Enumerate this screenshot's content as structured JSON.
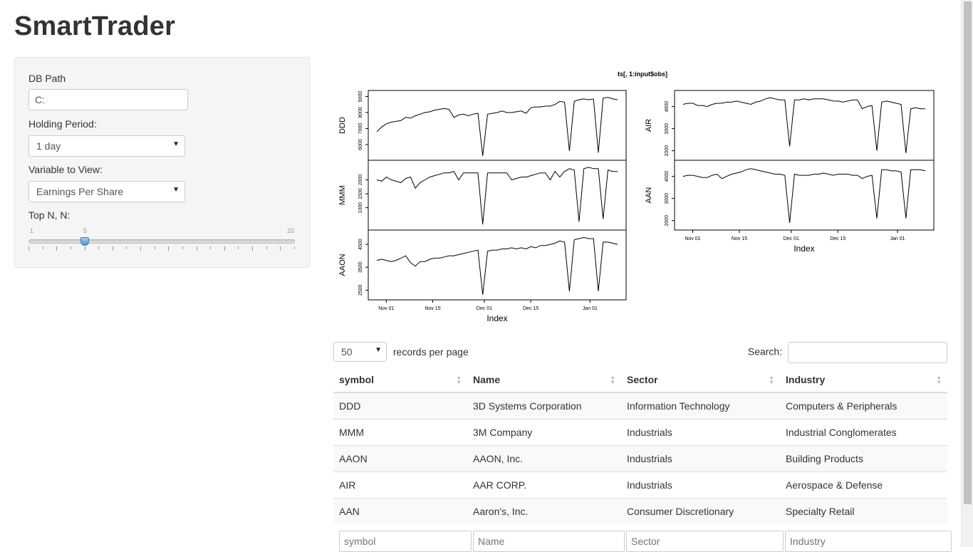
{
  "app": {
    "title": "SmartTrader"
  },
  "sidebar": {
    "db_path": {
      "label": "DB Path",
      "value": "C:"
    },
    "holding_period": {
      "label": "Holding Period:",
      "selected": "1 day"
    },
    "variable": {
      "label": "Variable to View:",
      "selected": "Earnings Per Share"
    },
    "top_n": {
      "label": "Top N, N:",
      "min": "1",
      "max": "20",
      "value": "5",
      "value_num": 5
    }
  },
  "chart_data": {
    "type": "line",
    "title": "ts[, 1:input$obs]",
    "xlabel": "Index",
    "x_ticks": [
      "Nov 01",
      "Nov 15",
      "Dec 01",
      "Dec 15",
      "Jan 01"
    ],
    "panels": [
      {
        "name": "DDD",
        "yticks": [
          "6000",
          "7000",
          "8000",
          "9000"
        ],
        "ylim": [
          5200,
          9200
        ],
        "values": [
          6800,
          7100,
          7300,
          7400,
          7450,
          7500,
          7700,
          7650,
          7800,
          7900,
          8000,
          8050,
          8150,
          8200,
          8250,
          8200,
          7700,
          7850,
          7900,
          7800,
          7900,
          7950,
          5300,
          7900,
          7950,
          8000,
          8100,
          8000,
          8000,
          8050,
          8100,
          7950,
          8300,
          8350,
          8350,
          8400,
          8400,
          8500,
          8700,
          8650,
          5600,
          8700,
          8800,
          8850,
          8800,
          8850,
          5500,
          8900,
          8950,
          8850,
          8800
        ]
      },
      {
        "name": "MMM",
        "yticks": [
          "1000",
          "1500",
          "2000"
        ],
        "ylim": [
          300,
          2600
        ],
        "values": [
          2000,
          1950,
          2100,
          2000,
          1950,
          1900,
          2050,
          2100,
          1700,
          1900,
          2000,
          2100,
          2150,
          2200,
          2250,
          2250,
          2300,
          2000,
          2250,
          2250,
          2250,
          2250,
          400,
          2250,
          2250,
          2250,
          2250,
          2250,
          2000,
          2050,
          2100,
          2100,
          2150,
          2200,
          2250,
          2250,
          2000,
          2300,
          2100,
          2300,
          2400,
          2350,
          500,
          2400,
          2450,
          2400,
          2400,
          600,
          2350,
          2300,
          2300
        ]
      },
      {
        "name": "AAON",
        "yticks": [
          "2500",
          "3500",
          "4500"
        ],
        "ylim": [
          2200,
          5000
        ],
        "values": [
          3800,
          3850,
          3800,
          3750,
          3800,
          3900,
          4000,
          3700,
          3550,
          3750,
          3750,
          3850,
          3900,
          3900,
          3950,
          4000,
          4000,
          4050,
          4100,
          4150,
          4200,
          4250,
          2300,
          4200,
          4250,
          4250,
          4300,
          4300,
          4350,
          4300,
          4350,
          4300,
          4400,
          4350,
          4450,
          4450,
          4500,
          4550,
          4650,
          4600,
          2450,
          4700,
          4750,
          4800,
          4750,
          4750,
          2450,
          4600,
          4600,
          4550,
          4500
        ]
      },
      {
        "name": "AIR",
        "yticks": [
          "2000",
          "3000",
          "4000"
        ],
        "ylim": [
          1700,
          4600
        ],
        "values": [
          4100,
          4150,
          4150,
          4050,
          4050,
          4000,
          4100,
          4150,
          4150,
          4200,
          4200,
          4250,
          4200,
          4150,
          4100,
          4200,
          4250,
          4350,
          4400,
          4350,
          4300,
          4300,
          2200,
          4300,
          4300,
          4350,
          4300,
          4350,
          4350,
          4350,
          4300,
          4250,
          4250,
          4200,
          4250,
          4300,
          4300,
          3900,
          4000,
          4050,
          2000,
          4200,
          4250,
          4200,
          4150,
          4100,
          1900,
          3900,
          3950,
          3900,
          3900
        ]
      },
      {
        "name": "AAN",
        "yticks": [
          "2000",
          "3000",
          "4000"
        ],
        "ylim": [
          1700,
          4600
        ],
        "values": [
          4000,
          4050,
          4050,
          4000,
          3950,
          3950,
          4050,
          4100,
          3900,
          4000,
          4100,
          4150,
          4200,
          4300,
          4350,
          4300,
          4250,
          4200,
          4150,
          4100,
          4100,
          4050,
          1900,
          4100,
          4050,
          4050,
          4050,
          4100,
          4100,
          4150,
          4100,
          4050,
          4100,
          4100,
          4100,
          4050,
          4050,
          3900,
          4000,
          4050,
          2100,
          4300,
          4300,
          4250,
          4250,
          4200,
          2100,
          4300,
          4300,
          4300,
          4250
        ]
      }
    ]
  },
  "table": {
    "length_selected": "50",
    "length_label": "records per page",
    "search_label": "Search:",
    "columns": [
      "symbol",
      "Name",
      "Sector",
      "Industry"
    ],
    "rows": [
      [
        "DDD",
        "3D Systems Corporation",
        "Information Technology",
        "Computers & Peripherals"
      ],
      [
        "MMM",
        "3M Company",
        "Industrials",
        "Industrial Conglomerates"
      ],
      [
        "AAON",
        "AAON, Inc.",
        "Industrials",
        "Building Products"
      ],
      [
        "AIR",
        "AAR CORP.",
        "Industrials",
        "Aerospace & Defense"
      ],
      [
        "AAN",
        "Aaron's, Inc.",
        "Consumer Discretionary",
        "Specialty Retail"
      ]
    ],
    "filter_placeholders": [
      "symbol",
      "Name",
      "Sector",
      "Industry"
    ]
  }
}
